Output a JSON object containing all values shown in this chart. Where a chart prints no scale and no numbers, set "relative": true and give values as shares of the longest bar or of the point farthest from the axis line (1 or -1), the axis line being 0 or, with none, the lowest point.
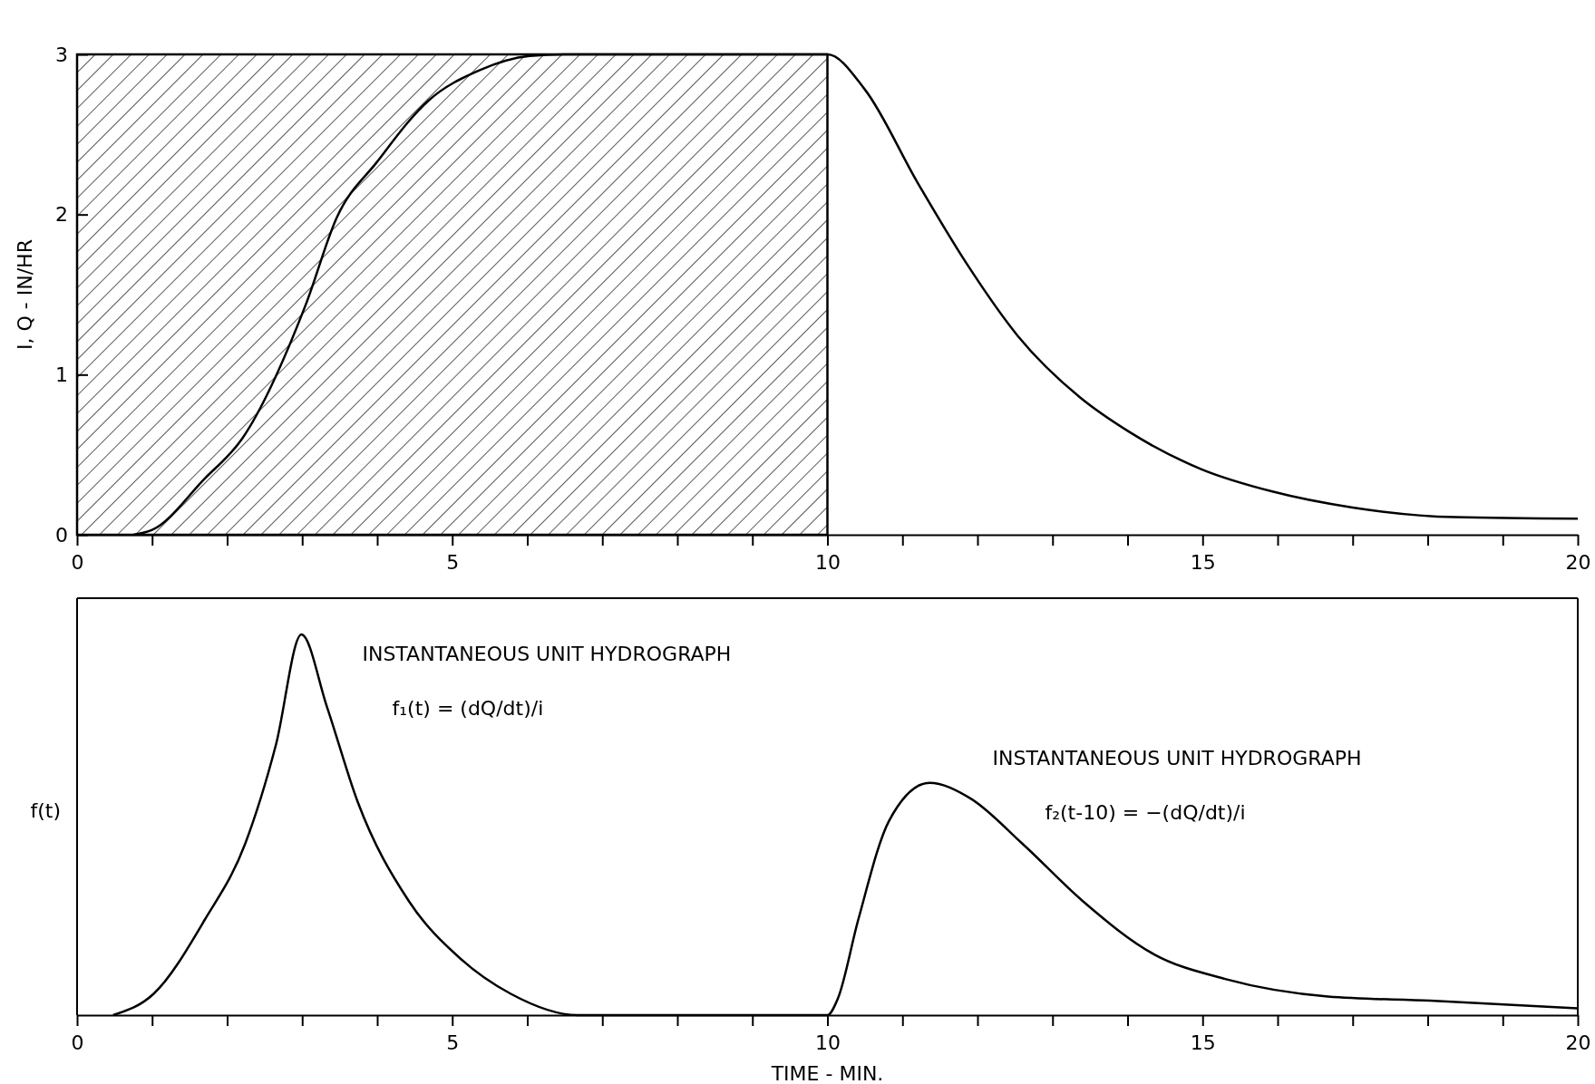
{
  "chart_data": [
    {
      "type": "line",
      "ylabel": "I, Q - IN/HR",
      "xlim": [
        0,
        20
      ],
      "ylim": [
        0,
        3
      ],
      "xticks": [
        0,
        {
          "value": 1,
          "label": null
        },
        {
          "value": 2,
          "label": null
        },
        {
          "value": 3,
          "label": null
        },
        {
          "value": 4,
          "label": null
        },
        5,
        {
          "value": 6,
          "label": null
        },
        {
          "value": 7,
          "label": null
        },
        {
          "value": 8,
          "label": null
        },
        {
          "value": 9,
          "label": null
        },
        10,
        {
          "value": 11,
          "label": null
        },
        {
          "value": 12,
          "label": null
        },
        {
          "value": 13,
          "label": null
        },
        {
          "value": 14,
          "label": null
        },
        15,
        {
          "value": 16,
          "label": null
        },
        {
          "value": 17,
          "label": null
        },
        {
          "value": 18,
          "label": null
        },
        {
          "value": 19,
          "label": null
        },
        20
      ],
      "yticks": [
        0,
        1,
        2,
        3
      ],
      "series": [
        {
          "type": "area",
          "color": "#000000",
          "x": [
            0,
            10
          ],
          "values": [
            3,
            3
          ]
        },
        {
          "color": "#000000",
          "x": [
            0.75,
            1.0,
            1.7,
            2.2,
            3.05,
            3.46,
            4.0,
            4.68,
            5.36,
            6.03,
            6.5,
            10.0,
            10.5,
            11.2,
            11.86,
            12.54,
            13.36,
            14.03,
            14.98,
            15.93,
            17.0,
            18.36,
            20.0
          ],
          "values": [
            0,
            0.03,
            0.35,
            0.6,
            1.44,
            1.98,
            2.33,
            2.71,
            2.9,
            2.99,
            3,
            3,
            2.78,
            2.2,
            1.69,
            1.24,
            0.86,
            0.64,
            0.41,
            0.27,
            0.17,
            0.11,
            0.1
          ]
        }
      ]
    },
    {
      "type": "line",
      "relative": true,
      "xlabel": "TIME - MIN.",
      "ylabel": "f(t)",
      "xlim": [
        0,
        20
      ],
      "xticks": [
        0,
        {
          "value": 1,
          "label": null
        },
        {
          "value": 2,
          "label": null
        },
        {
          "value": 3,
          "label": null
        },
        {
          "value": 4,
          "label": null
        },
        5,
        {
          "value": 6,
          "label": null
        },
        {
          "value": 7,
          "label": null
        },
        {
          "value": 8,
          "label": null
        },
        {
          "value": 9,
          "label": null
        },
        10,
        {
          "value": 11,
          "label": null
        },
        {
          "value": 12,
          "label": null
        },
        {
          "value": 13,
          "label": null
        },
        {
          "value": 14,
          "label": null
        },
        15,
        {
          "value": 16,
          "label": null
        },
        {
          "value": 17,
          "label": null
        },
        {
          "value": 18,
          "label": null
        },
        {
          "value": 19,
          "label": null
        },
        20
      ],
      "series": [
        {
          "color": "#000000",
          "x": [
            0.48,
            1.02,
            1.7,
            2.24,
            2.65,
            2.99,
            3.33,
            3.74,
            4.42,
            5.1,
            5.78,
            6.67,
            10.0,
            10.14,
            10.41,
            10.82,
            11.36,
            11.9,
            12.6,
            13.4,
            14.35,
            15.3,
            16.67,
            18.03,
            20.0
          ],
          "values": [
            0,
            0.056,
            0.25,
            0.45,
            0.71,
            1,
            0.81,
            0.56,
            0.3,
            0.15,
            0.056,
            0,
            0,
            0.044,
            0.25,
            0.51,
            0.61,
            0.57,
            0.45,
            0.3,
            0.16,
            0.095,
            0.049,
            0.038,
            0.018
          ]
        }
      ],
      "annotations": [
        "INSTANTANEOUS UNIT HYDROGRAPH",
        "f₁(t) = (dQ/dt)/i",
        "INSTANTANEOUS UNIT HYDROGRAPH",
        "f₂(t-10) = −(dQ/dt)/i"
      ]
    }
  ]
}
